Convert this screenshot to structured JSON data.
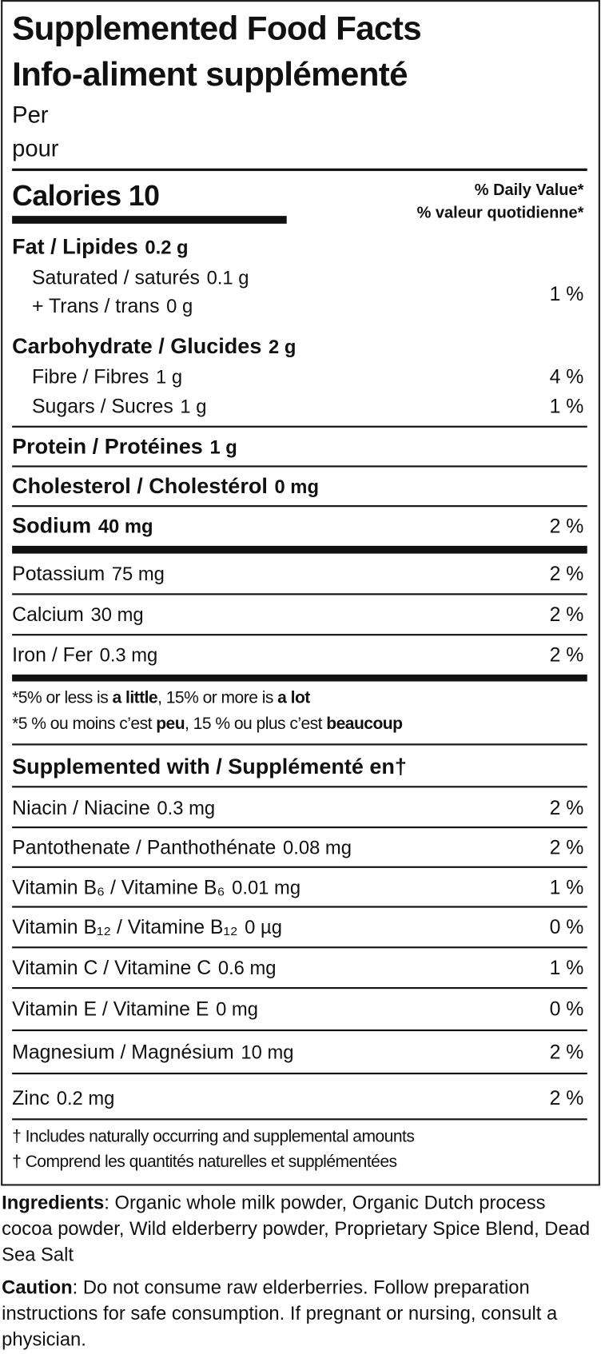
{
  "title_en": "Supplemented Food Facts",
  "title_fr": "Info-aliment supplémenté",
  "per_en": "Per",
  "per_fr": "pour",
  "calories_label": "Calories",
  "calories_value": "10",
  "dv_en": "% Daily Value*",
  "dv_fr": "% valeur quotidienne*",
  "nutrients": [
    {
      "label": "Fat / Lipides",
      "amount": "0.2 g",
      "dv": "",
      "bold": true
    },
    {
      "label": "Saturated / saturés",
      "amount": "0.1 g",
      "dv": "",
      "indent": true
    },
    {
      "label": "+ Trans / trans",
      "amount": "0 g",
      "dv": "",
      "indent": true
    },
    {
      "label": "",
      "amount": "",
      "dv": "1 %"
    },
    {
      "label": "Carbohydrate / Glucides",
      "amount": "2 g",
      "dv": "",
      "bold": true
    },
    {
      "label": "Fibre / Fibres",
      "amount": "1 g",
      "dv": "4 %",
      "indent": true
    },
    {
      "label": "Sugars / Sucres",
      "amount": "1 g",
      "dv": "1 %",
      "indent": true
    },
    {
      "label": "Protein / Protéines",
      "amount": "1 g",
      "dv": "",
      "bold": true
    },
    {
      "label": "Cholesterol / Cholestérol",
      "amount": "0 mg",
      "dv": "",
      "bold": true
    },
    {
      "label": "Sodium",
      "amount": "40 mg",
      "dv": "2 %",
      "bold": true
    },
    {
      "label": "Potassium",
      "amount": "75 mg",
      "dv": "2 %"
    },
    {
      "label": "Calcium",
      "amount": "30 mg",
      "dv": "2 %"
    },
    {
      "label": "Iron / Fer",
      "amount": "0.3 mg",
      "dv": "2 %"
    }
  ],
  "footnote": {
    "en_pre": "*5% or less is ",
    "en_b1": "a little",
    "en_mid": ", 15% or more is ",
    "en_b2": "a lot",
    "fr_pre": "*5 % ou moins c’est ",
    "fr_b1": "peu",
    "fr_mid": ", 15 % ou plus c’est ",
    "fr_b2": "beaucoup"
  },
  "supplemented_heading": "Supplemented with / Supplémenté en†",
  "supplements": [
    {
      "label": "Niacin / Niacine",
      "amount": "0.3 mg",
      "dv": "2 %"
    },
    {
      "label": "Pantothenate / Panthothénate",
      "amount": "0.08 mg",
      "dv": "2 %"
    },
    {
      "label": "Vitamin B₆ / Vitamine B₆",
      "amount": "0.01 mg",
      "dv": "1 %"
    },
    {
      "label": "Vitamin B₁₂ / Vitamine B₁₂",
      "amount": "0 µg",
      "dv": "0 %"
    },
    {
      "label": "Vitamin C / Vitamine C",
      "amount": "0.6 mg",
      "dv": "1 %"
    },
    {
      "label": "Vitamin E / Vitamine E",
      "amount": "0 mg",
      "dv": "0 %"
    },
    {
      "label": "Magnesium / Magnésium",
      "amount": "10 mg",
      "dv": "2 %"
    },
    {
      "label": "Zinc",
      "amount": "0.2 mg",
      "dv": "2 %"
    }
  ],
  "dagger_en": "† Includes naturally occurring and supplemental amounts",
  "dagger_fr": "† Comprend les quantités naturelles et supplémentées",
  "ingredients_label": "Ingredients",
  "ingredients_text": ": Organic whole milk powder, Organic Dutch process cocoa powder, Wild elderberry powder, Proprietary Spice Blend, Dead Sea Salt",
  "caution_label": "Caution",
  "caution_text": ": Do not consume raw elderberries. Follow preparation instructions for safe consumption. If pregnant or nursing, consult a physician."
}
